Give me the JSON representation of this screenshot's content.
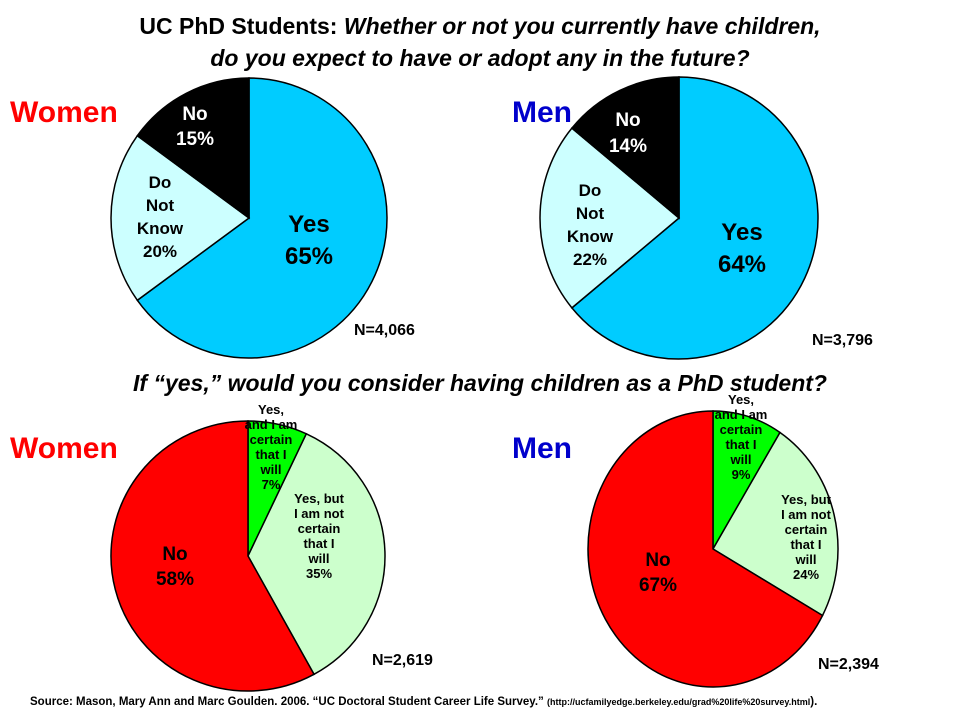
{
  "title_prefix": "UC PhD Students: ",
  "title_question_1": "Whether or not you currently have children,",
  "title_question_2": "do you expect to have or adopt any in the future?",
  "subtitle": "If “yes,” would you consider having children as a PhD student?",
  "source_text": "Source: Mason, Mary Ann  and Marc Goulden.  2006. “UC Doctoral  Student Career Life Survey.”",
  "source_url": "(http://ucfamilyedge.berkeley.edu/grad%20life%20survey.html",
  "source_end": ").",
  "colors": {
    "yes": "#00ccff",
    "dont_know": "#ccffff",
    "no_top": "#000000",
    "no_bottom": "#ff0000",
    "yes_certain": "#00ff00",
    "yes_not_certain": "#ccffcc"
  },
  "chart_data": [
    {
      "type": "pie",
      "group": "Women",
      "n_label": "N=4,066",
      "slices": [
        {
          "label": [
            "Yes",
            "65%"
          ],
          "value": 65,
          "color": "#00ccff"
        },
        {
          "label": [
            "Do",
            "Not",
            "Know",
            "20%"
          ],
          "value": 20,
          "color": "#ccffff"
        },
        {
          "label": [
            "No",
            "15%"
          ],
          "value": 15,
          "color": "#000000"
        }
      ]
    },
    {
      "type": "pie",
      "group": "Men",
      "n_label": "N=3,796",
      "slices": [
        {
          "label": [
            "Yes",
            "64%"
          ],
          "value": 64,
          "color": "#00ccff"
        },
        {
          "label": [
            "Do",
            "Not",
            "Know",
            "22%"
          ],
          "value": 22,
          "color": "#ccffff"
        },
        {
          "label": [
            "No",
            "14%"
          ],
          "value": 14,
          "color": "#000000"
        }
      ]
    },
    {
      "type": "pie",
      "group": "Women",
      "n_label": "N=2,619",
      "slices": [
        {
          "label": [
            "Yes,",
            "and I am",
            "certain",
            "that I",
            "will",
            "7%"
          ],
          "value": 7,
          "color": "#00ff00"
        },
        {
          "label": [
            "Yes, but",
            "I am not",
            "certain",
            "that I",
            "will",
            "35%"
          ],
          "value": 35,
          "color": "#ccffcc"
        },
        {
          "label": [
            "No",
            "58%"
          ],
          "value": 58,
          "color": "#ff0000"
        }
      ]
    },
    {
      "type": "pie",
      "group": "Men",
      "n_label": "N=2,394",
      "slices": [
        {
          "label": [
            "Yes,",
            "and I am",
            "certain",
            "that I",
            "will",
            "9%"
          ],
          "value": 9,
          "color": "#00ff00"
        },
        {
          "label": [
            "Yes, but",
            "I am not",
            "certain",
            "that I",
            "will",
            "24%"
          ],
          "value": 24,
          "color": "#ccffcc"
        },
        {
          "label": [
            "No",
            "67%"
          ],
          "value": 67,
          "color": "#ff0000"
        }
      ]
    }
  ]
}
